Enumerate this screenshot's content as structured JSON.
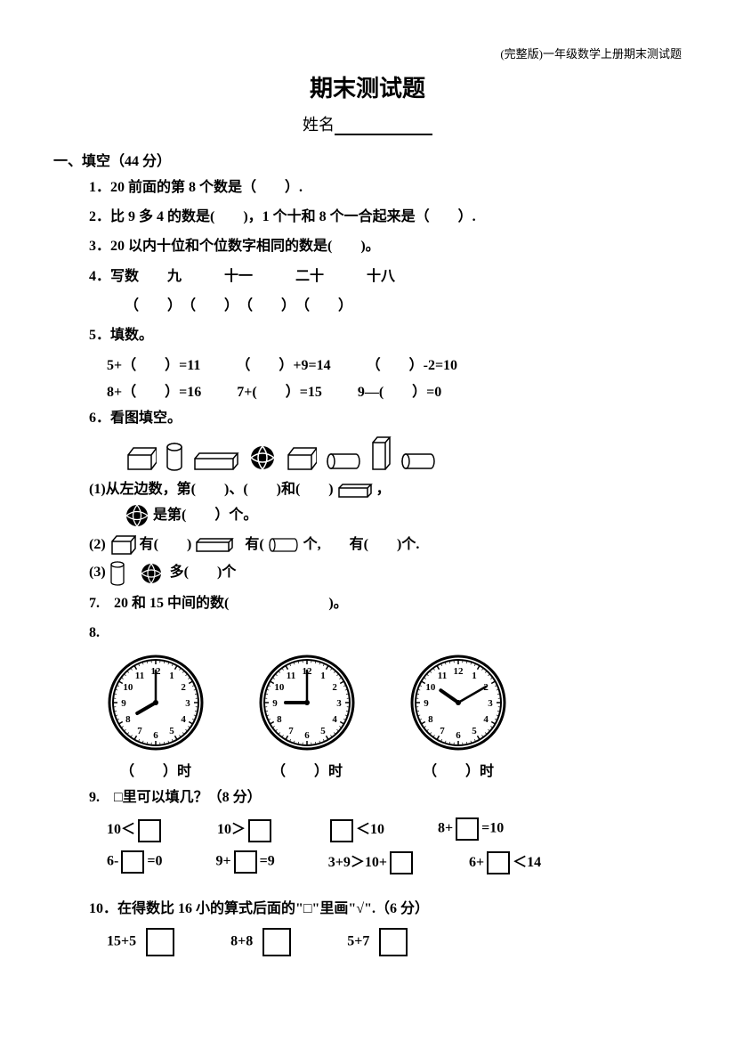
{
  "header_note": "(完整版)一年级数学上册期末测试题",
  "title": "期末测试题",
  "name_label": "姓名",
  "section1": {
    "head": "一、填空（44 分）",
    "q1": "1．20 前面的第 8 个数是（　　）.",
    "q2": "2．比 9 多 4 的数是(　　)，1 个十和 8 个一合起来是（　　）.",
    "q3": "3．20 以内十位和个位数字相同的数是(　　)。",
    "q4a": "4．写数　　九　　　十一　　　二十　　　十八",
    "q4b": "（　　）　（　　）　（　　）　（　　）",
    "q5": "5．填数。",
    "q5r1a": "5+（　　）=11",
    "q5r1b": "（　　）+9=14",
    "q5r1c": "（　　）-2=10",
    "q5r2a": "8+（　　）=16",
    "q5r2b": "7+(　　）=15",
    "q5r2c": "9—(　　）=0",
    "q6": "6．看图填空。",
    "q6_1a": "(1)从左边数，第(　　)、(　　)和(　　)",
    "q6_1a_tail": "，",
    "q6_1b": "是第(　　）个。",
    "q6_2a": "(2)",
    "q6_2b": "有(　　)",
    "q6_2c": "有(",
    "q6_2d": "个,　　有(　　)个.",
    "q6_3a": "(3)",
    "q6_3b": "多(　　)个",
    "q7": "7.　20 和 15 中间的数(　　　　　　　)。",
    "q8": "8.",
    "q8_label": "（　　）时",
    "q9": "9.　□里可以填几？（8 分）",
    "q9_items": [
      "10＜",
      "10＞",
      "＜10",
      "8+",
      "=10",
      "6-",
      "=0",
      "9+",
      "=9",
      "3+9＞10+",
      "6+",
      "＜14"
    ],
    "q10": "10．在得数比 16 小的算式后面的\"□\"里画\"√\".（6 分）",
    "q10_items": [
      "15+5",
      "8+8",
      "5+7"
    ]
  },
  "clocks": [
    {
      "hour": 8,
      "minute": 0
    },
    {
      "hour": 9,
      "minute": 0
    },
    {
      "hour": 10,
      "minute": 10
    }
  ]
}
